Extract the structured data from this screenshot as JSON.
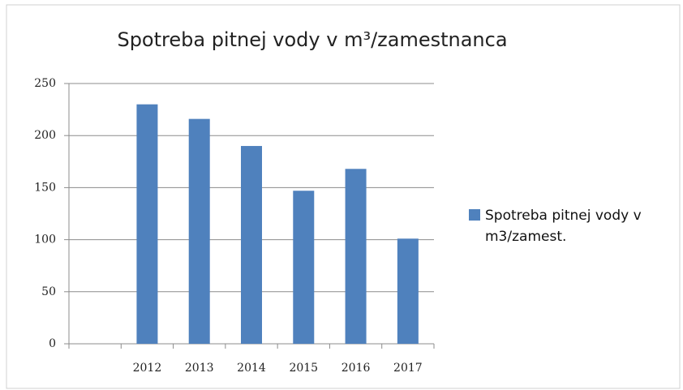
{
  "chart_data": {
    "type": "bar",
    "title": "Spotreba pitnej vody v m³/zamestnanca",
    "categories": [
      null,
      "2012",
      "2013",
      "2014",
      "2015",
      "2016",
      "2017"
    ],
    "series": [
      {
        "name": "Spotreba pitnej vody v m3/zamest.",
        "color": "#4f81bd",
        "values": [
          null,
          230,
          216,
          190,
          147,
          168,
          101
        ]
      }
    ],
    "ylim": [
      0,
      250
    ],
    "yticks": [
      0,
      50,
      100,
      150,
      200,
      250
    ],
    "grid": true,
    "legend": "right"
  }
}
